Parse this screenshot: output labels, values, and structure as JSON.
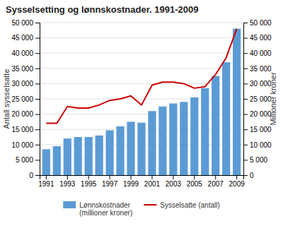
{
  "chart_data": {
    "type": "bar",
    "title": "Sysselsetting og lønnskostnader. 1991-2009",
    "categories": [
      "1991",
      null,
      "1993",
      null,
      "1995",
      null,
      "1997",
      null,
      "1999",
      null,
      "2001",
      null,
      "2003",
      null,
      "2005",
      null,
      "2007",
      null,
      "2009"
    ],
    "series": [
      {
        "name": "Lønnskostnader\n(millioner kroner)",
        "type": "bar",
        "color": "#5b9bd5",
        "values": [
          8500,
          9500,
          12000,
          12500,
          12500,
          13000,
          14700,
          16000,
          17500,
          17200,
          21000,
          22500,
          23500,
          24000,
          25500,
          28500,
          32500,
          37000,
          48000
        ]
      },
      {
        "name": "Sysselsatte (antall)",
        "type": "line",
        "color": "#cc0000",
        "axis": "y2",
        "values": [
          17000,
          17000,
          22500,
          22000,
          22000,
          23000,
          24500,
          25000,
          26000,
          23000,
          29500,
          30500,
          30500,
          30000,
          28500,
          29000,
          33000,
          38500,
          48000
        ]
      }
    ],
    "ylabel": "Antall sysselsatte",
    "y2label": "Millioner kroner",
    "ylim": [
      0,
      50000
    ],
    "yticks": [
      0,
      {
        "value": 5000,
        "label": "5 000"
      },
      {
        "value": 10000,
        "label": "10 000"
      },
      {
        "value": 15000,
        "label": "15 000"
      },
      {
        "value": 20000,
        "label": "20 000"
      },
      {
        "value": 25000,
        "label": "25 000"
      },
      {
        "value": 30000,
        "label": "30 000"
      },
      {
        "value": 35000,
        "label": "35 000"
      },
      {
        "value": 40000,
        "label": "40 000"
      },
      {
        "value": 45000,
        "label": "45 000"
      },
      {
        "value": 50000,
        "label": "50 000"
      }
    ],
    "y2lim": [
      0,
      50000
    ],
    "y2ticks": [
      0,
      {
        "value": 5000,
        "label": "5 000"
      },
      {
        "value": 10000,
        "label": "10 000"
      },
      {
        "value": 15000,
        "label": "15 000"
      },
      {
        "value": 20000,
        "label": "20 000"
      },
      {
        "value": 25000,
        "label": "25 000"
      },
      {
        "value": 30000,
        "label": "30 000"
      },
      {
        "value": 35000,
        "label": "35 000"
      },
      {
        "value": 40000,
        "label": "40 000"
      },
      {
        "value": 45000,
        "label": "45 000"
      },
      {
        "value": 50000,
        "label": "50 000"
      }
    ],
    "grid": true,
    "legend": "bottom"
  }
}
